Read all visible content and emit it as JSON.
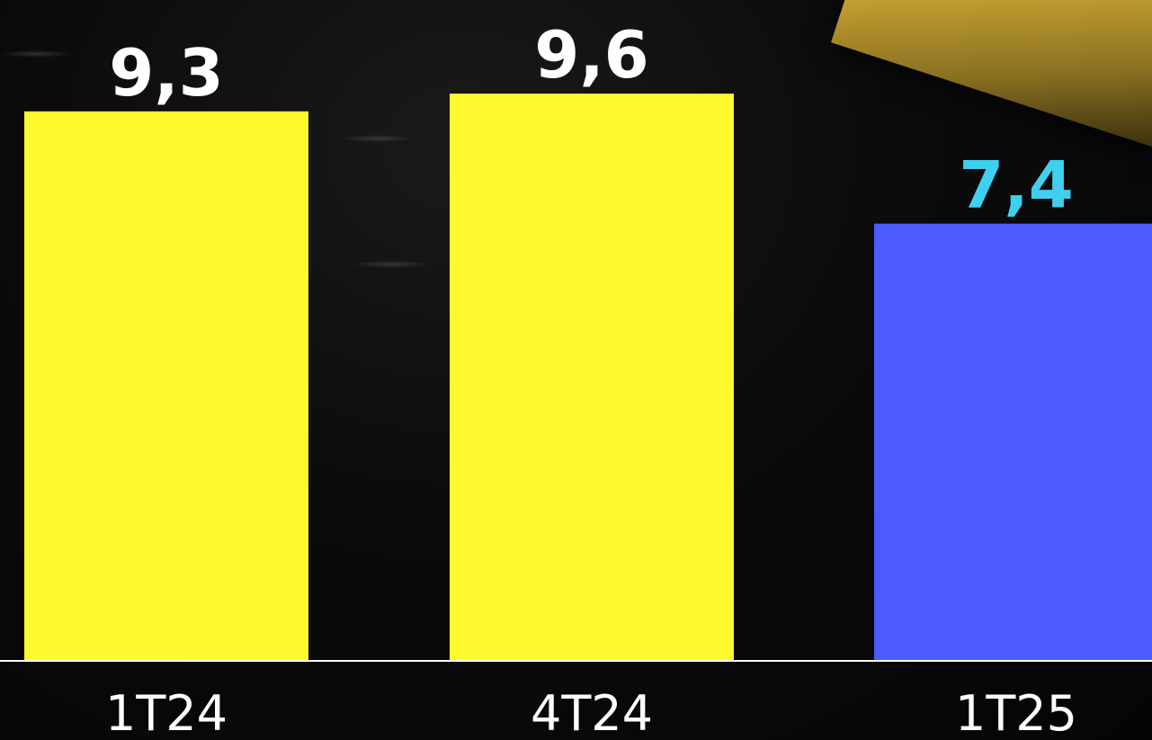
{
  "chart_data": {
    "type": "bar",
    "categories": [
      "1T24",
      "4T24",
      "1T25"
    ],
    "values": [
      9.3,
      9.6,
      7.4
    ],
    "data_labels": [
      "9,3",
      "9,6",
      "7,4"
    ],
    "title": "",
    "xlabel": "",
    "ylabel": "",
    "ylim": [
      0,
      10.5
    ],
    "grid": false,
    "legend": "none",
    "bar_colors": [
      "#fcfa2d",
      "#fcfa2d",
      "#4a5cff"
    ],
    "label_colors": [
      "#ffffff",
      "#ffffff",
      "#3fd0f0"
    ],
    "tick_label_color": "#ffffff",
    "axis_color": "#ffffff"
  }
}
